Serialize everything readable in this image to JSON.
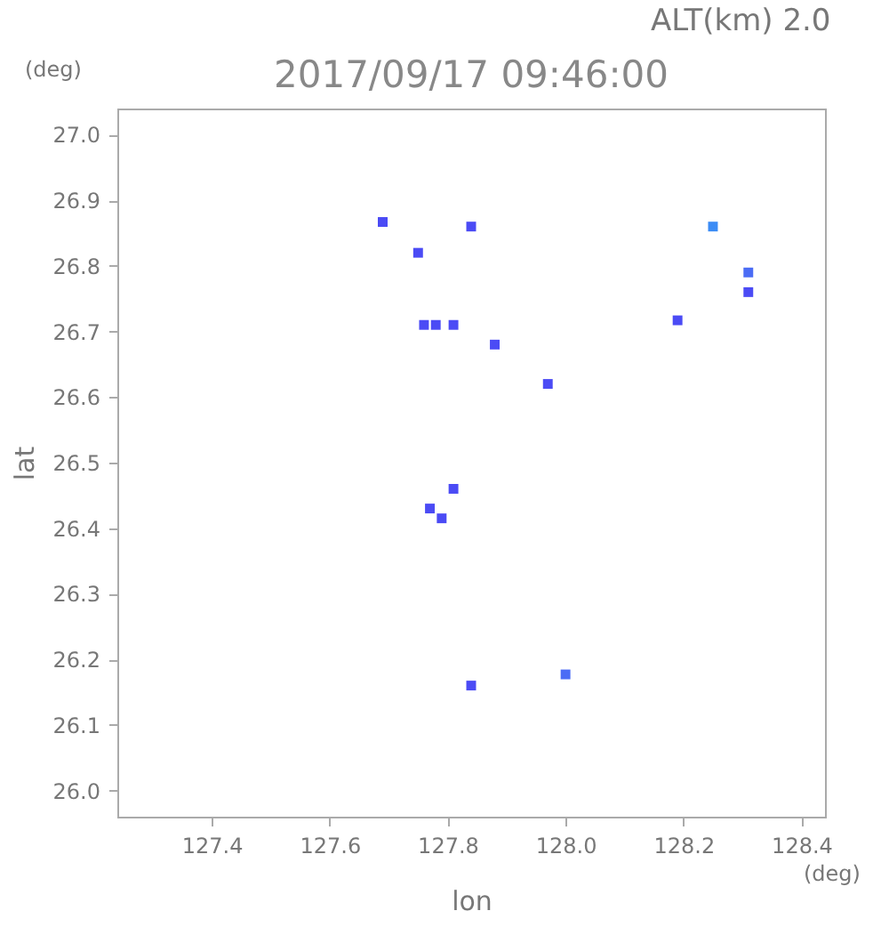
{
  "chart_data": {
    "type": "scatter",
    "title": "2017/09/17 09:46:00",
    "annotations": [
      "ALT(km) 2.0",
      "(deg)",
      "(deg)"
    ],
    "xlabel": "lon",
    "ylabel": "lat",
    "x": [
      127.69,
      127.75,
      127.84,
      128.25,
      127.76,
      127.78,
      127.81,
      127.88,
      127.97,
      128.19,
      128.31,
      128.31,
      127.81,
      127.77,
      127.79,
      128.0,
      127.84
    ],
    "values": [
      26.867,
      26.82,
      26.86,
      26.86,
      26.71,
      26.71,
      26.71,
      26.68,
      26.62,
      26.717,
      26.79,
      26.76,
      26.46,
      26.43,
      26.415,
      26.177,
      26.16
    ],
    "colors": [
      "#4b4bf5",
      "#4b4bf5",
      "#4b4bf5",
      "#3c8cf5",
      "#4b4bf5",
      "#4b4bf5",
      "#4b4bf5",
      "#4b4bf5",
      "#4b4bf5",
      "#4b4bf5",
      "#4b6cf5",
      "#4b4bf5",
      "#4b4bf5",
      "#4b4bf5",
      "#4b4bf5",
      "#4b6cf5",
      "#4b4bf5"
    ],
    "marker": "square",
    "xlim": [
      127.24,
      128.44
    ],
    "ylim": [
      25.96,
      27.04
    ],
    "xticks": [
      127.4,
      127.6,
      127.8,
      {
        "value": 128,
        "label": "128.0"
      },
      128.2,
      128.4
    ],
    "yticks": [
      {
        "value": 26,
        "label": "26.0"
      },
      26.1,
      26.2,
      26.3,
      26.4,
      26.5,
      26.6,
      26.7,
      26.8,
      26.9,
      {
        "value": 27,
        "label": "27.0"
      }
    ],
    "grid": false
  }
}
